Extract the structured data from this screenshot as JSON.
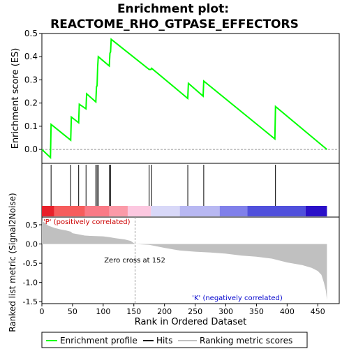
{
  "chart_data": {
    "type": "line",
    "title_line1": "Enrichment plot:",
    "title_line2": "REACTOME_RHO_GTPASE_EFFECTORS",
    "es_panel": {
      "ylabel": "Enrichment score (ES)",
      "ylim": [
        -0.06,
        0.5
      ],
      "yticks": [
        0.0,
        0.1,
        0.2,
        0.3,
        0.4,
        0.5
      ],
      "ytick_labels": [
        "0.0",
        "0.1",
        "0.2",
        "0.3",
        "0.4",
        "0.5"
      ],
      "curve_color": "#00ff00",
      "points": [
        [
          0,
          0.0
        ],
        [
          14,
          -0.035
        ],
        [
          15,
          0.108
        ],
        [
          47,
          0.04
        ],
        [
          48,
          0.14
        ],
        [
          60,
          0.115
        ],
        [
          61,
          0.195
        ],
        [
          72,
          0.175
        ],
        [
          73,
          0.24
        ],
        [
          88,
          0.205
        ],
        [
          89,
          0.27
        ],
        [
          90,
          0.275
        ],
        [
          91,
          0.355
        ],
        [
          92,
          0.4
        ],
        [
          110,
          0.36
        ],
        [
          111,
          0.415
        ],
        [
          112,
          0.42
        ],
        [
          113,
          0.475
        ],
        [
          175,
          0.345
        ],
        [
          178,
          0.345
        ],
        [
          179,
          0.35
        ],
        [
          238,
          0.22
        ],
        [
          239,
          0.285
        ],
        [
          263,
          0.23
        ],
        [
          264,
          0.295
        ],
        [
          380,
          0.045
        ],
        [
          381,
          0.185
        ],
        [
          465,
          0.0
        ]
      ]
    },
    "hits_panel": {
      "hit_positions": [
        15,
        47,
        60,
        72,
        88,
        90,
        92,
        110,
        112,
        175,
        179,
        238,
        264,
        381
      ]
    },
    "rank_bar": {
      "segments": [
        {
          "from": 0,
          "to": 20,
          "color": "#e8202a"
        },
        {
          "from": 20,
          "to": 70,
          "color": "#f65c5c"
        },
        {
          "from": 70,
          "to": 110,
          "color": "#f97a86"
        },
        {
          "from": 110,
          "to": 140,
          "color": "#fb9aa8"
        },
        {
          "from": 140,
          "to": 178,
          "color": "#fcc8e0"
        },
        {
          "from": 178,
          "to": 225,
          "color": "#d8d8f8"
        },
        {
          "from": 225,
          "to": 290,
          "color": "#b8b8f2"
        },
        {
          "from": 290,
          "to": 335,
          "color": "#8080ea"
        },
        {
          "from": 335,
          "to": 430,
          "color": "#5050dc"
        },
        {
          "from": 430,
          "to": 465,
          "color": "#2a10c8"
        }
      ]
    },
    "metric_panel": {
      "ylabel": "Ranked list metric (Signal2Noise)",
      "ylim": [
        -1.55,
        0.7
      ],
      "yticks": [
        -1.5,
        -1.0,
        -0.5,
        0.0,
        0.5
      ],
      "ytick_labels": [
        "-1.5",
        "-1.0",
        "-0.5",
        "0.0",
        "0.5"
      ],
      "positive_label": "'P' (positively correlated)",
      "negative_label": "'K' (negatively correlated)",
      "zero_cross_label": "Zero cross at 152",
      "zero_cross": 152,
      "profile": [
        [
          0,
          0.6
        ],
        [
          5,
          0.55
        ],
        [
          10,
          0.48
        ],
        [
          20,
          0.42
        ],
        [
          30,
          0.38
        ],
        [
          40,
          0.35
        ],
        [
          47,
          0.32
        ],
        [
          50,
          0.28
        ],
        [
          60,
          0.25
        ],
        [
          70,
          0.22
        ],
        [
          80,
          0.21
        ],
        [
          100,
          0.2
        ],
        [
          110,
          0.18
        ],
        [
          120,
          0.15
        ],
        [
          135,
          0.12
        ],
        [
          145,
          0.08
        ],
        [
          152,
          0.0
        ],
        [
          175,
          -0.02
        ],
        [
          200,
          -0.1
        ],
        [
          225,
          -0.17
        ],
        [
          250,
          -0.2
        ],
        [
          275,
          -0.22
        ],
        [
          300,
          -0.25
        ],
        [
          325,
          -0.3
        ],
        [
          350,
          -0.33
        ],
        [
          375,
          -0.38
        ],
        [
          400,
          -0.48
        ],
        [
          425,
          -0.55
        ],
        [
          440,
          -0.62
        ],
        [
          450,
          -0.7
        ],
        [
          456,
          -0.8
        ],
        [
          460,
          -1.0
        ],
        [
          463,
          -1.2
        ],
        [
          465,
          -1.45
        ]
      ]
    },
    "xlabel": "Rank in Ordered Dataset",
    "xlim": [
      0,
      485
    ],
    "xticks": [
      0,
      50,
      100,
      150,
      200,
      250,
      300,
      350,
      400,
      450
    ],
    "xtick_labels": [
      "0",
      "50",
      "100",
      "150",
      "200",
      "250",
      "300",
      "350",
      "400",
      "450"
    ],
    "legend": {
      "placement": "bottom",
      "items": [
        {
          "label": "Enrichment profile",
          "color": "#00ff00"
        },
        {
          "label": "Hits",
          "color": "#000000"
        },
        {
          "label": "Ranking metric scores",
          "color": "#c0c0c0"
        }
      ]
    }
  }
}
